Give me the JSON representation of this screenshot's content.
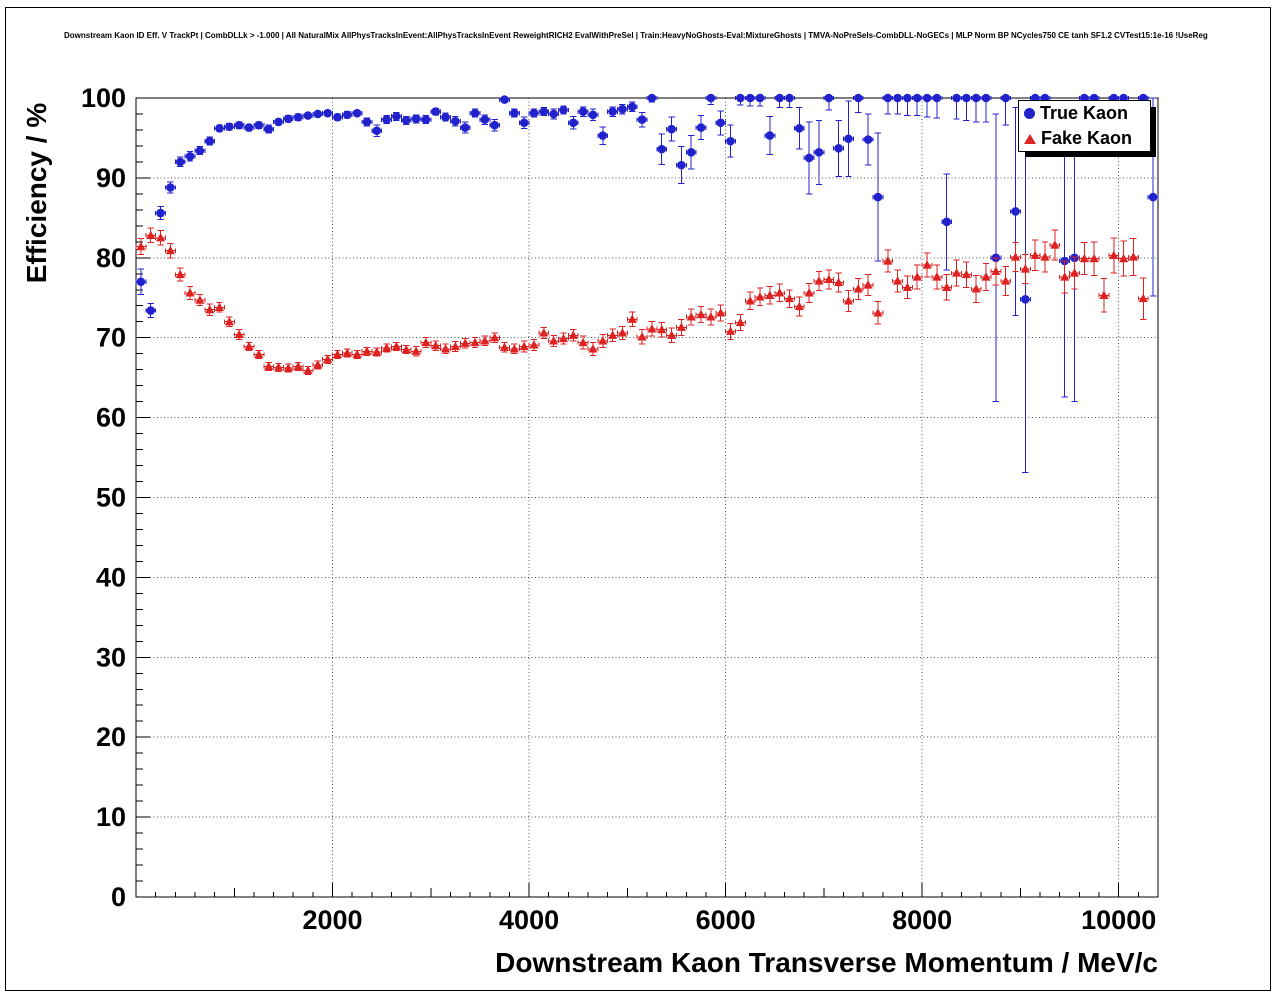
{
  "page": {
    "title": "Downstream Kaon ID Eff. V TrackPt | CombDLLk > -1.000 | All NaturalMix AllPhysTracksInEvent:AllPhysTracksInEvent ReweightRICH2 EvalWithPreSel | Train:HeavyNoGhosts-Eval:MixtureGhosts | TMVA-NoPreSels-CombDLL-NoGECs | MLP Norm BP NCycles750 CE tanh SF1.2 CVTest15:1e-16 !UseReg"
  },
  "chart_data": {
    "type": "scatter",
    "title": "Downstream Kaon ID Eff. V TrackPt | CombDLLk > -1.000 | All NaturalMix AllPhysTracksInEvent:AllPhysTracksInEvent ReweightRICH2 EvalWithPreSel | Train:HeavyNoGhosts-Eval:MixtureGhosts | TMVA-NoPreSels-CombDLL-NoGECs | MLP Norm BP NCycles750 CE tanh SF1.2 CVTest15:1e-16 !UseReg",
    "xlabel": "Downstream Kaon Transverse Momentum / MeV/c",
    "ylabel": "Efficiency / %",
    "xlim": [
      0,
      10400
    ],
    "ylim": [
      0,
      100
    ],
    "x_ticks": [
      2000,
      4000,
      6000,
      8000,
      10000
    ],
    "y_ticks": [
      0,
      10,
      20,
      30,
      40,
      50,
      60,
      70,
      80,
      90,
      100
    ],
    "x_minor_step": 200,
    "y_minor_step": 2,
    "grid": "dotted",
    "legend_position": "top-right",
    "legend_entries": [
      "True Kaon",
      "Fake Kaon"
    ],
    "series": [
      {
        "name": "True Kaon",
        "marker": "circle",
        "color": "#2222cc",
        "xerr": 50,
        "points": [
          [
            50,
            77.0,
            1.6
          ],
          [
            150,
            73.4,
            0.9
          ],
          [
            250,
            85.6,
            0.8
          ],
          [
            350,
            88.8,
            0.7
          ],
          [
            450,
            92.0,
            0.6
          ],
          [
            550,
            92.7,
            0.6
          ],
          [
            650,
            93.4,
            0.5
          ],
          [
            750,
            94.6,
            0.5
          ],
          [
            850,
            96.2,
            0.4
          ],
          [
            950,
            96.4,
            0.4
          ],
          [
            1050,
            96.6,
            0.4
          ],
          [
            1150,
            96.3,
            0.4
          ],
          [
            1250,
            96.6,
            0.4
          ],
          [
            1350,
            96.1,
            0.5
          ],
          [
            1450,
            97.0,
            0.4
          ],
          [
            1550,
            97.4,
            0.4
          ],
          [
            1650,
            97.6,
            0.4
          ],
          [
            1750,
            97.8,
            0.3
          ],
          [
            1850,
            98.0,
            0.3
          ],
          [
            1950,
            98.1,
            0.3
          ],
          [
            2050,
            97.6,
            0.4
          ],
          [
            2150,
            97.9,
            0.4
          ],
          [
            2250,
            98.1,
            0.3
          ],
          [
            2350,
            97.0,
            0.5
          ],
          [
            2450,
            95.9,
            0.7
          ],
          [
            2550,
            97.3,
            0.5
          ],
          [
            2650,
            97.7,
            0.5
          ],
          [
            2750,
            97.2,
            0.5
          ],
          [
            2850,
            97.4,
            0.5
          ],
          [
            2950,
            97.3,
            0.5
          ],
          [
            3050,
            98.3,
            0.4
          ],
          [
            3150,
            97.6,
            0.5
          ],
          [
            3250,
            97.1,
            0.6
          ],
          [
            3350,
            96.3,
            0.7
          ],
          [
            3450,
            98.1,
            0.5
          ],
          [
            3550,
            97.3,
            0.6
          ],
          [
            3650,
            96.6,
            0.7
          ],
          [
            3750,
            99.8,
            0.2
          ],
          [
            3850,
            98.1,
            0.5
          ],
          [
            3950,
            96.9,
            0.7
          ],
          [
            4050,
            98.1,
            0.5
          ],
          [
            4150,
            98.3,
            0.5
          ],
          [
            4250,
            98.0,
            0.6
          ],
          [
            4350,
            98.5,
            0.5
          ],
          [
            4450,
            96.9,
            0.8
          ],
          [
            4550,
            98.3,
            0.6
          ],
          [
            4650,
            97.9,
            0.7
          ],
          [
            4750,
            95.3,
            1.1
          ],
          [
            4850,
            98.3,
            0.6
          ],
          [
            4950,
            98.6,
            0.6
          ],
          [
            5050,
            98.9,
            0.6
          ],
          [
            5150,
            97.3,
            0.9
          ],
          [
            5250,
            100.0,
            0.5
          ],
          [
            5350,
            93.6,
            1.9
          ],
          [
            5450,
            96.1,
            1.5
          ],
          [
            5550,
            91.6,
            2.3
          ],
          [
            5650,
            93.2,
            2.1
          ],
          [
            5750,
            96.3,
            1.5
          ],
          [
            5850,
            100.0,
            0.8
          ],
          [
            5950,
            96.9,
            1.5
          ],
          [
            6050,
            94.6,
            2.0
          ],
          [
            6150,
            100.0,
            0.9
          ],
          [
            6250,
            100.0,
            1.0
          ],
          [
            6350,
            100.0,
            1.0
          ],
          [
            6450,
            95.3,
            2.4
          ],
          [
            6550,
            100.0,
            1.2
          ],
          [
            6650,
            100.0,
            1.2
          ],
          [
            6750,
            96.2,
            2.6
          ],
          [
            6850,
            92.5,
            4.5
          ],
          [
            6950,
            93.2,
            4.0
          ],
          [
            7050,
            100.0,
            1.5
          ],
          [
            7150,
            93.7,
            3.5
          ],
          [
            7250,
            94.9,
            4.7
          ],
          [
            7350,
            100.0,
            1.8
          ],
          [
            7450,
            94.8,
            3.2
          ],
          [
            7550,
            87.6,
            8.0
          ],
          [
            7650,
            100.0,
            2.0
          ],
          [
            7750,
            100.0,
            2.0
          ],
          [
            7850,
            100.0,
            2.2
          ],
          [
            7950,
            100.0,
            2.2
          ],
          [
            8050,
            100.0,
            2.4
          ],
          [
            8150,
            100.0,
            2.5
          ],
          [
            8250,
            84.5,
            6.0
          ],
          [
            8350,
            100.0,
            2.6
          ],
          [
            8450,
            100.0,
            2.8
          ],
          [
            8550,
            100.0,
            3.0
          ],
          [
            8650,
            100.0,
            3.0
          ],
          [
            8750,
            80.0,
            18.0
          ],
          [
            8850,
            100.0,
            3.4
          ],
          [
            8950,
            85.8,
            13.0
          ],
          [
            9050,
            74.8,
            21.7
          ],
          [
            9150,
            100.0,
            4.0
          ],
          [
            9250,
            100.0,
            4.0
          ],
          [
            9450,
            79.6,
            17.0
          ],
          [
            9550,
            80.0,
            18.0
          ],
          [
            9650,
            100.0,
            5.0
          ],
          [
            9750,
            100.0,
            5.0
          ],
          [
            9950,
            100.0,
            5.5
          ],
          [
            10050,
            100.0,
            6.0
          ],
          [
            10250,
            100.0,
            6.0
          ],
          [
            10350,
            87.6,
            12.4
          ]
        ]
      },
      {
        "name": "Fake Kaon",
        "marker": "triangle",
        "color": "#dd2222",
        "xerr": 50,
        "points": [
          [
            50,
            81.4,
            1.0
          ],
          [
            150,
            82.8,
            0.9
          ],
          [
            250,
            82.5,
            0.9
          ],
          [
            350,
            80.9,
            0.9
          ],
          [
            450,
            77.9,
            0.8
          ],
          [
            550,
            75.6,
            0.8
          ],
          [
            650,
            74.7,
            0.7
          ],
          [
            750,
            73.5,
            0.7
          ],
          [
            850,
            73.8,
            0.6
          ],
          [
            950,
            72.0,
            0.6
          ],
          [
            1050,
            70.4,
            0.6
          ],
          [
            1150,
            68.9,
            0.5
          ],
          [
            1250,
            67.9,
            0.5
          ],
          [
            1350,
            66.4,
            0.5
          ],
          [
            1450,
            66.3,
            0.5
          ],
          [
            1550,
            66.2,
            0.5
          ],
          [
            1650,
            66.4,
            0.5
          ],
          [
            1750,
            65.9,
            0.5
          ],
          [
            1850,
            66.6,
            0.5
          ],
          [
            1950,
            67.3,
            0.5
          ],
          [
            2050,
            67.9,
            0.5
          ],
          [
            2150,
            68.1,
            0.5
          ],
          [
            2250,
            67.9,
            0.5
          ],
          [
            2350,
            68.3,
            0.5
          ],
          [
            2450,
            68.2,
            0.5
          ],
          [
            2550,
            68.7,
            0.5
          ],
          [
            2650,
            68.9,
            0.5
          ],
          [
            2750,
            68.5,
            0.5
          ],
          [
            2850,
            68.3,
            0.6
          ],
          [
            2950,
            69.4,
            0.6
          ],
          [
            3050,
            69.0,
            0.6
          ],
          [
            3150,
            68.6,
            0.6
          ],
          [
            3250,
            68.9,
            0.6
          ],
          [
            3350,
            69.3,
            0.6
          ],
          [
            3450,
            69.4,
            0.6
          ],
          [
            3550,
            69.6,
            0.6
          ],
          [
            3650,
            70.0,
            0.6
          ],
          [
            3750,
            68.8,
            0.6
          ],
          [
            3850,
            68.6,
            0.6
          ],
          [
            3950,
            68.9,
            0.7
          ],
          [
            4050,
            69.1,
            0.7
          ],
          [
            4150,
            70.6,
            0.7
          ],
          [
            4250,
            69.6,
            0.7
          ],
          [
            4350,
            69.9,
            0.7
          ],
          [
            4450,
            70.3,
            0.7
          ],
          [
            4550,
            69.4,
            0.8
          ],
          [
            4650,
            68.6,
            0.8
          ],
          [
            4750,
            69.6,
            0.8
          ],
          [
            4850,
            70.3,
            0.8
          ],
          [
            4950,
            70.6,
            0.8
          ],
          [
            5050,
            72.3,
            0.9
          ],
          [
            5150,
            70.1,
            0.9
          ],
          [
            5250,
            71.1,
            0.9
          ],
          [
            5350,
            71.0,
            0.9
          ],
          [
            5450,
            70.3,
            0.9
          ],
          [
            5550,
            71.3,
            1.0
          ],
          [
            5650,
            72.6,
            1.0
          ],
          [
            5750,
            72.9,
            1.0
          ],
          [
            5850,
            72.6,
            1.0
          ],
          [
            5950,
            73.1,
            1.0
          ],
          [
            6050,
            70.8,
            1.0
          ],
          [
            6150,
            71.9,
            1.0
          ],
          [
            6250,
            74.6,
            1.1
          ],
          [
            6350,
            75.1,
            1.1
          ],
          [
            6450,
            75.3,
            1.1
          ],
          [
            6550,
            75.6,
            1.1
          ],
          [
            6650,
            74.9,
            1.1
          ],
          [
            6750,
            73.9,
            1.2
          ],
          [
            6850,
            75.6,
            1.2
          ],
          [
            6950,
            77.1,
            1.2
          ],
          [
            7050,
            77.3,
            1.2
          ],
          [
            7150,
            76.9,
            1.2
          ],
          [
            7250,
            74.6,
            1.3
          ],
          [
            7350,
            76.1,
            1.3
          ],
          [
            7450,
            76.6,
            1.3
          ],
          [
            7550,
            73.1,
            1.4
          ],
          [
            7650,
            79.6,
            1.4
          ],
          [
            7750,
            77.1,
            1.4
          ],
          [
            7850,
            76.3,
            1.4
          ],
          [
            7950,
            77.6,
            1.5
          ],
          [
            8050,
            79.1,
            1.5
          ],
          [
            8150,
            77.6,
            1.5
          ],
          [
            8250,
            76.3,
            1.6
          ],
          [
            8350,
            78.1,
            1.6
          ],
          [
            8450,
            77.9,
            1.6
          ],
          [
            8550,
            76.1,
            1.7
          ],
          [
            8650,
            77.6,
            1.7
          ],
          [
            8750,
            78.3,
            1.7
          ],
          [
            8850,
            77.1,
            1.8
          ],
          [
            8950,
            80.1,
            1.8
          ],
          [
            9050,
            78.6,
            1.8
          ],
          [
            9150,
            80.3,
            1.9
          ],
          [
            9250,
            80.1,
            1.9
          ],
          [
            9350,
            81.6,
            1.9
          ],
          [
            9450,
            77.6,
            2.0
          ],
          [
            9550,
            78.1,
            2.0
          ],
          [
            9650,
            79.9,
            2.0
          ],
          [
            9750,
            79.9,
            2.1
          ],
          [
            9850,
            75.3,
            2.1
          ],
          [
            9950,
            80.3,
            2.2
          ],
          [
            10050,
            79.9,
            2.2
          ],
          [
            10150,
            80.1,
            2.3
          ],
          [
            10250,
            74.9,
            2.6
          ]
        ]
      }
    ]
  }
}
